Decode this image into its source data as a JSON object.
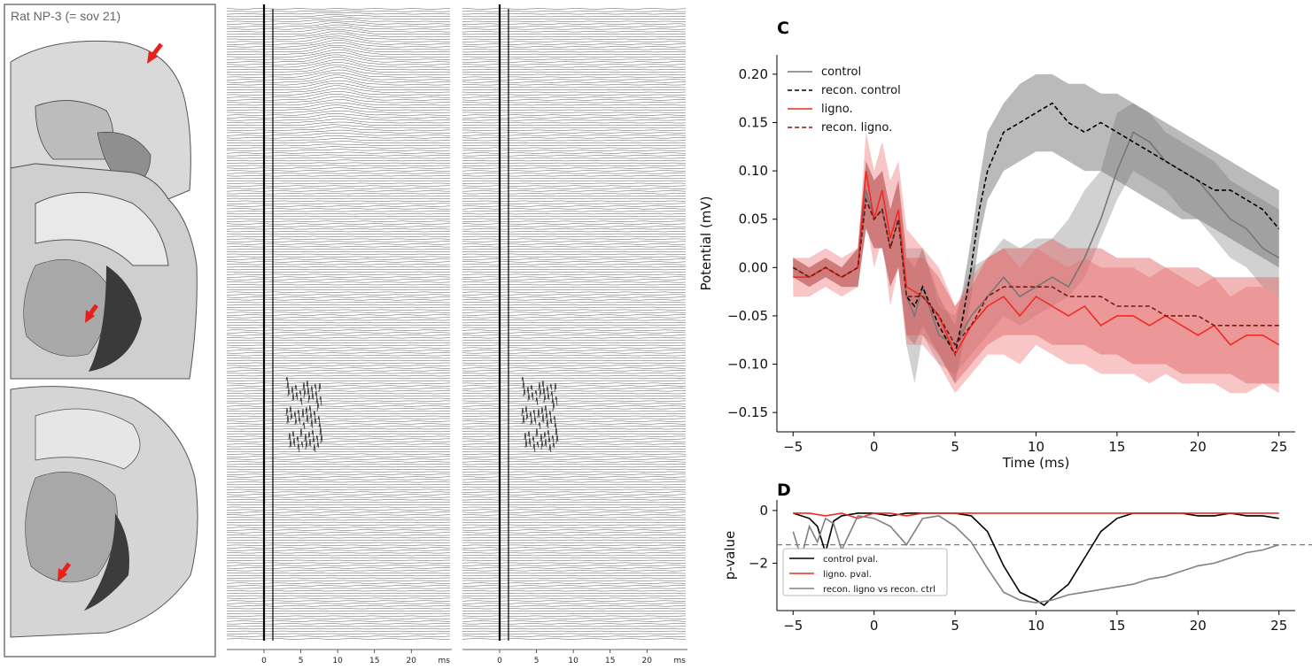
{
  "histology": {
    "label": "Rat NP-3 (= sov 21)",
    "stimulation_site_marker_color": "#e8201a"
  },
  "traces": {
    "x_ticks": [
      "0",
      "5",
      "10",
      "15",
      "20"
    ],
    "x_unit": "ms"
  },
  "colors": {
    "control": "#555555",
    "control_band": "#9a9a9a",
    "ligno": "#ee2b24",
    "ligno_band": "#f08080",
    "recon_ligno": "#7a1a10",
    "threshold": "#777777"
  },
  "chart_data": [
    {
      "panel": "C",
      "type": "line",
      "xlabel": "Time (ms)",
      "ylabel": "Potential (mV)",
      "xlim": [
        -6,
        26
      ],
      "ylim": [
        -0.17,
        0.22
      ],
      "x_ticks": [
        -5,
        0,
        5,
        10,
        15,
        20,
        25
      ],
      "y_ticks": [
        "0.20",
        "0.15",
        "0.10",
        "0.05",
        "0.00",
        "−0.05",
        "−0.10",
        "−0.15"
      ],
      "y_tick_values": [
        0.2,
        0.15,
        0.1,
        0.05,
        0.0,
        -0.05,
        -0.1,
        -0.15
      ],
      "legend_position": "top-left",
      "series": [
        {
          "name": "control",
          "style": "solid",
          "x": [
            -5,
            -4,
            -3,
            -2,
            -1,
            -0.5,
            0,
            0.5,
            1,
            1.5,
            2,
            2.5,
            3,
            4,
            5,
            6,
            7,
            8,
            9,
            10,
            11,
            12,
            13,
            14,
            15,
            16,
            17,
            18,
            19,
            20,
            21,
            22,
            23,
            24,
            25
          ],
          "y": [
            0.0,
            -0.01,
            0.0,
            -0.01,
            0.0,
            0.08,
            0.05,
            0.06,
            0.02,
            0.05,
            -0.03,
            -0.05,
            -0.02,
            -0.07,
            -0.08,
            -0.05,
            -0.03,
            -0.01,
            -0.03,
            -0.02,
            -0.01,
            -0.02,
            0.01,
            0.05,
            0.1,
            0.14,
            0.13,
            0.11,
            0.1,
            0.09,
            0.07,
            0.05,
            0.04,
            0.02,
            0.01
          ],
          "band_lo": [
            -0.01,
            -0.02,
            -0.01,
            -0.02,
            -0.02,
            0.04,
            0.02,
            0.02,
            -0.02,
            0.0,
            -0.08,
            -0.12,
            -0.07,
            -0.1,
            -0.11,
            -0.09,
            -0.07,
            -0.05,
            -0.06,
            -0.05,
            -0.04,
            -0.03,
            -0.01,
            0.03,
            0.07,
            0.1,
            0.09,
            0.08,
            0.06,
            0.05,
            0.03,
            0.01,
            0.0,
            -0.02,
            -0.03
          ],
          "band_hi": [
            0.01,
            0.0,
            0.01,
            0.0,
            0.02,
            0.11,
            0.09,
            0.1,
            0.06,
            0.09,
            0.02,
            0.02,
            0.02,
            -0.04,
            -0.05,
            0.0,
            0.01,
            0.03,
            0.02,
            0.03,
            0.03,
            0.05,
            0.08,
            0.1,
            0.16,
            0.17,
            0.16,
            0.14,
            0.13,
            0.12,
            0.11,
            0.09,
            0.08,
            0.07,
            0.06
          ]
        },
        {
          "name": "recon. control",
          "style": "dashed",
          "x": [
            -5,
            -4,
            -3,
            -2,
            -1,
            -0.5,
            0,
            0.5,
            1,
            1.5,
            2,
            2.5,
            3,
            4,
            5,
            5.5,
            6,
            6.5,
            7,
            8,
            9,
            10,
            11,
            12,
            13,
            14,
            15,
            16,
            17,
            18,
            19,
            20,
            21,
            22,
            23,
            24,
            25
          ],
          "y": [
            0.0,
            -0.01,
            0.0,
            -0.01,
            0.0,
            0.07,
            0.05,
            0.06,
            0.02,
            0.05,
            -0.03,
            -0.04,
            -0.02,
            -0.06,
            -0.09,
            -0.05,
            0.0,
            0.06,
            0.1,
            0.14,
            0.15,
            0.16,
            0.17,
            0.15,
            0.14,
            0.15,
            0.14,
            0.13,
            0.12,
            0.11,
            0.1,
            0.09,
            0.08,
            0.08,
            0.07,
            0.06,
            0.04
          ],
          "band_lo": [
            -0.01,
            -0.02,
            -0.01,
            -0.02,
            -0.02,
            0.04,
            0.02,
            0.02,
            -0.02,
            0.0,
            -0.07,
            -0.08,
            -0.06,
            -0.09,
            -0.12,
            -0.08,
            -0.03,
            0.03,
            0.07,
            0.1,
            0.11,
            0.12,
            0.12,
            0.11,
            0.1,
            0.1,
            0.09,
            0.08,
            0.07,
            0.06,
            0.05,
            0.05,
            0.04,
            0.03,
            0.02,
            0.01,
            0.0
          ],
          "band_hi": [
            0.01,
            0.0,
            0.01,
            0.0,
            0.02,
            0.11,
            0.09,
            0.1,
            0.06,
            0.09,
            0.01,
            0.0,
            0.02,
            -0.03,
            -0.06,
            -0.02,
            0.03,
            0.09,
            0.14,
            0.17,
            0.19,
            0.2,
            0.2,
            0.19,
            0.19,
            0.18,
            0.18,
            0.17,
            0.16,
            0.15,
            0.14,
            0.13,
            0.12,
            0.11,
            0.1,
            0.09,
            0.08
          ]
        },
        {
          "name": "ligno.",
          "style": "solid",
          "x": [
            -5,
            -4,
            -3,
            -2,
            -1,
            -0.5,
            0,
            0.5,
            1,
            1.5,
            2,
            3,
            4,
            5,
            6,
            7,
            8,
            9,
            10,
            11,
            12,
            13,
            14,
            15,
            16,
            17,
            18,
            19,
            20,
            21,
            22,
            23,
            24,
            25
          ],
          "y": [
            -0.01,
            -0.01,
            0.0,
            -0.01,
            0.0,
            0.1,
            0.05,
            0.08,
            0.03,
            0.06,
            -0.02,
            -0.03,
            -0.05,
            -0.09,
            -0.06,
            -0.04,
            -0.03,
            -0.05,
            -0.03,
            -0.04,
            -0.05,
            -0.04,
            -0.06,
            -0.05,
            -0.05,
            -0.06,
            -0.05,
            -0.06,
            -0.07,
            -0.06,
            -0.08,
            -0.07,
            -0.07,
            -0.08
          ],
          "band_lo": [
            -0.03,
            -0.03,
            -0.02,
            -0.03,
            -0.02,
            0.05,
            0.0,
            0.03,
            -0.04,
            0.0,
            -0.08,
            -0.08,
            -0.1,
            -0.13,
            -0.11,
            -0.09,
            -0.09,
            -0.1,
            -0.08,
            -0.09,
            -0.1,
            -0.1,
            -0.11,
            -0.11,
            -0.11,
            -0.12,
            -0.11,
            -0.12,
            -0.12,
            -0.12,
            -0.13,
            -0.13,
            -0.12,
            -0.13
          ],
          "band_hi": [
            0.01,
            0.01,
            0.02,
            0.01,
            0.02,
            0.14,
            0.1,
            0.13,
            0.09,
            0.11,
            0.04,
            0.02,
            0.0,
            -0.04,
            -0.01,
            0.01,
            0.02,
            0.0,
            0.02,
            0.01,
            0.0,
            0.01,
            0.0,
            0.0,
            0.0,
            -0.01,
            0.0,
            -0.01,
            -0.02,
            -0.01,
            -0.03,
            -0.02,
            -0.02,
            -0.03
          ]
        },
        {
          "name": "recon. ligno.",
          "style": "dashed",
          "x": [
            -5,
            -4,
            -3,
            -2,
            -1,
            -0.5,
            0,
            0.5,
            1,
            1.5,
            2,
            3,
            4,
            5,
            6,
            7,
            8,
            9,
            10,
            11,
            12,
            13,
            14,
            15,
            16,
            17,
            18,
            19,
            20,
            21,
            22,
            23,
            24,
            25
          ],
          "y": [
            0.0,
            -0.01,
            0.0,
            -0.01,
            0.0,
            0.07,
            0.05,
            0.06,
            0.02,
            0.05,
            -0.03,
            -0.03,
            -0.05,
            -0.08,
            -0.06,
            -0.03,
            -0.02,
            -0.02,
            -0.02,
            -0.02,
            -0.03,
            -0.03,
            -0.03,
            -0.04,
            -0.04,
            -0.04,
            -0.05,
            -0.05,
            -0.05,
            -0.06,
            -0.06,
            -0.06,
            -0.06,
            -0.06
          ],
          "band_lo": [
            -0.01,
            -0.02,
            -0.01,
            -0.02,
            -0.02,
            0.04,
            0.02,
            0.02,
            -0.02,
            0.0,
            -0.07,
            -0.07,
            -0.09,
            -0.12,
            -0.1,
            -0.08,
            -0.07,
            -0.07,
            -0.07,
            -0.08,
            -0.08,
            -0.08,
            -0.09,
            -0.09,
            -0.1,
            -0.1,
            -0.1,
            -0.11,
            -0.11,
            -0.11,
            -0.11,
            -0.12,
            -0.12,
            -0.12
          ],
          "band_hi": [
            0.01,
            0.0,
            0.01,
            0.0,
            0.02,
            0.11,
            0.09,
            0.1,
            0.06,
            0.09,
            0.01,
            0.01,
            -0.01,
            -0.04,
            -0.02,
            0.01,
            0.02,
            0.02,
            0.02,
            0.03,
            0.02,
            0.02,
            0.02,
            0.01,
            0.01,
            0.01,
            0.0,
            0.0,
            0.0,
            -0.01,
            -0.01,
            -0.01,
            -0.01,
            -0.01
          ]
        }
      ]
    },
    {
      "panel": "D",
      "type": "line",
      "xlabel": "",
      "ylabel": "p-value",
      "xlim": [
        -6,
        26
      ],
      "ylim": [
        -3.8,
        0.4
      ],
      "x_ticks": [
        -5,
        0,
        5,
        10,
        15,
        20,
        25
      ],
      "y_ticks": [
        "0",
        "−2"
      ],
      "y_tick_values": [
        0,
        -2
      ],
      "threshold": -1.3,
      "legend_position": "bottom-left",
      "series": [
        {
          "name": "control pval.",
          "style": "solid",
          "x": [
            -5,
            -4,
            -3.5,
            -3,
            -2.5,
            -2,
            -1,
            0,
            1,
            2,
            3,
            4,
            5,
            6,
            7,
            8,
            9,
            10,
            10.5,
            11,
            12,
            13,
            14,
            15,
            16,
            17,
            18,
            19,
            20,
            21,
            22,
            23,
            24,
            25
          ],
          "y": [
            -0.1,
            -0.3,
            -0.6,
            -1.6,
            -0.4,
            -0.2,
            -0.1,
            -0.1,
            -0.2,
            -0.1,
            -0.1,
            -0.1,
            -0.1,
            -0.2,
            -0.8,
            -2.1,
            -3.1,
            -3.4,
            -3.6,
            -3.3,
            -2.8,
            -1.8,
            -0.8,
            -0.3,
            -0.1,
            -0.1,
            -0.1,
            -0.1,
            -0.2,
            -0.2,
            -0.1,
            -0.2,
            -0.2,
            -0.3
          ]
        },
        {
          "name": "ligno. pval.",
          "style": "solid",
          "x": [
            -5,
            -4,
            -3,
            -2,
            -1,
            0,
            1,
            2,
            3,
            4,
            5,
            6,
            7,
            8,
            9,
            10,
            11,
            12,
            13,
            14,
            15,
            16,
            17,
            18,
            19,
            20,
            21,
            22,
            23,
            24,
            25
          ],
          "y": [
            -0.1,
            -0.1,
            -0.2,
            -0.1,
            -0.3,
            -0.1,
            -0.1,
            -0.2,
            -0.1,
            -0.1,
            -0.1,
            -0.1,
            -0.1,
            -0.1,
            -0.1,
            -0.1,
            -0.1,
            -0.1,
            -0.1,
            -0.1,
            -0.1,
            -0.1,
            -0.1,
            -0.1,
            -0.1,
            -0.1,
            -0.1,
            -0.1,
            -0.1,
            -0.1,
            -0.1
          ]
        },
        {
          "name": "recon. ligno vs recon. ctrl",
          "style": "solid",
          "x": [
            -5,
            -4.5,
            -4,
            -3.5,
            -3,
            -2.5,
            -2,
            -1,
            0,
            1,
            2,
            3,
            4,
            5,
            6,
            7,
            8,
            9,
            10,
            11,
            12,
            13,
            14,
            15,
            16,
            17,
            18,
            19,
            20,
            21,
            22,
            23,
            24,
            25
          ],
          "y": [
            -0.8,
            -1.8,
            -0.6,
            -1.2,
            -0.3,
            -0.5,
            -1.5,
            -0.2,
            -0.3,
            -0.6,
            -1.3,
            -0.3,
            -0.2,
            -0.6,
            -1.2,
            -2.2,
            -3.1,
            -3.4,
            -3.5,
            -3.4,
            -3.2,
            -3.1,
            -3.0,
            -2.9,
            -2.8,
            -2.6,
            -2.5,
            -2.3,
            -2.1,
            -2.0,
            -1.8,
            -1.6,
            -1.5,
            -1.3
          ]
        }
      ]
    }
  ]
}
